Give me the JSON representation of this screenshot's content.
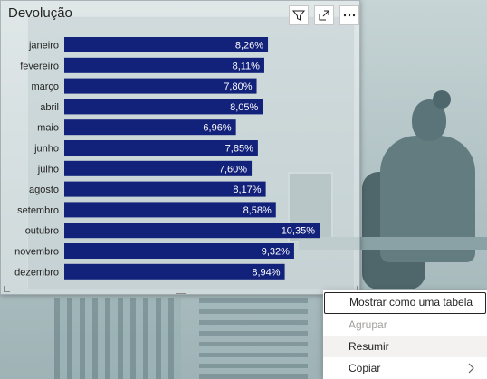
{
  "visual": {
    "title": "Devolução",
    "header_icons": [
      "filter-icon",
      "focus-mode-icon",
      "more-options-icon"
    ]
  },
  "chart_data": {
    "type": "bar",
    "orientation": "horizontal",
    "categories": [
      "janeiro",
      "fevereiro",
      "março",
      "abril",
      "maio",
      "junho",
      "julho",
      "agosto",
      "setembro",
      "outubro",
      "novembro",
      "dezembro"
    ],
    "values": [
      8.26,
      8.11,
      7.8,
      8.05,
      6.96,
      7.85,
      7.6,
      8.17,
      8.58,
      10.35,
      9.32,
      8.94
    ],
    "data_labels": [
      "8,26%",
      "8,11%",
      "7,80%",
      "8,05%",
      "6,96%",
      "7,85%",
      "7,60%",
      "8,17%",
      "8,58%",
      "10,35%",
      "9,32%",
      "8,94%"
    ],
    "title": "Devolução",
    "xlim": [
      0,
      10.35
    ],
    "bar_color": "#12217a",
    "grid": false,
    "legend": "none"
  },
  "context_menu": {
    "items": [
      {
        "label": "Mostrar como uma tabela",
        "state": "focused"
      },
      {
        "label": "Agrupar",
        "state": "disabled"
      },
      {
        "label": "Resumir",
        "state": "hover"
      },
      {
        "label": "Copiar",
        "state": "submenu",
        "icon": "chevron-right-icon"
      }
    ]
  },
  "colors": {
    "accent": "#12217a",
    "menu_bg": "#ffffff",
    "disabled_text": "#a19f9d"
  }
}
